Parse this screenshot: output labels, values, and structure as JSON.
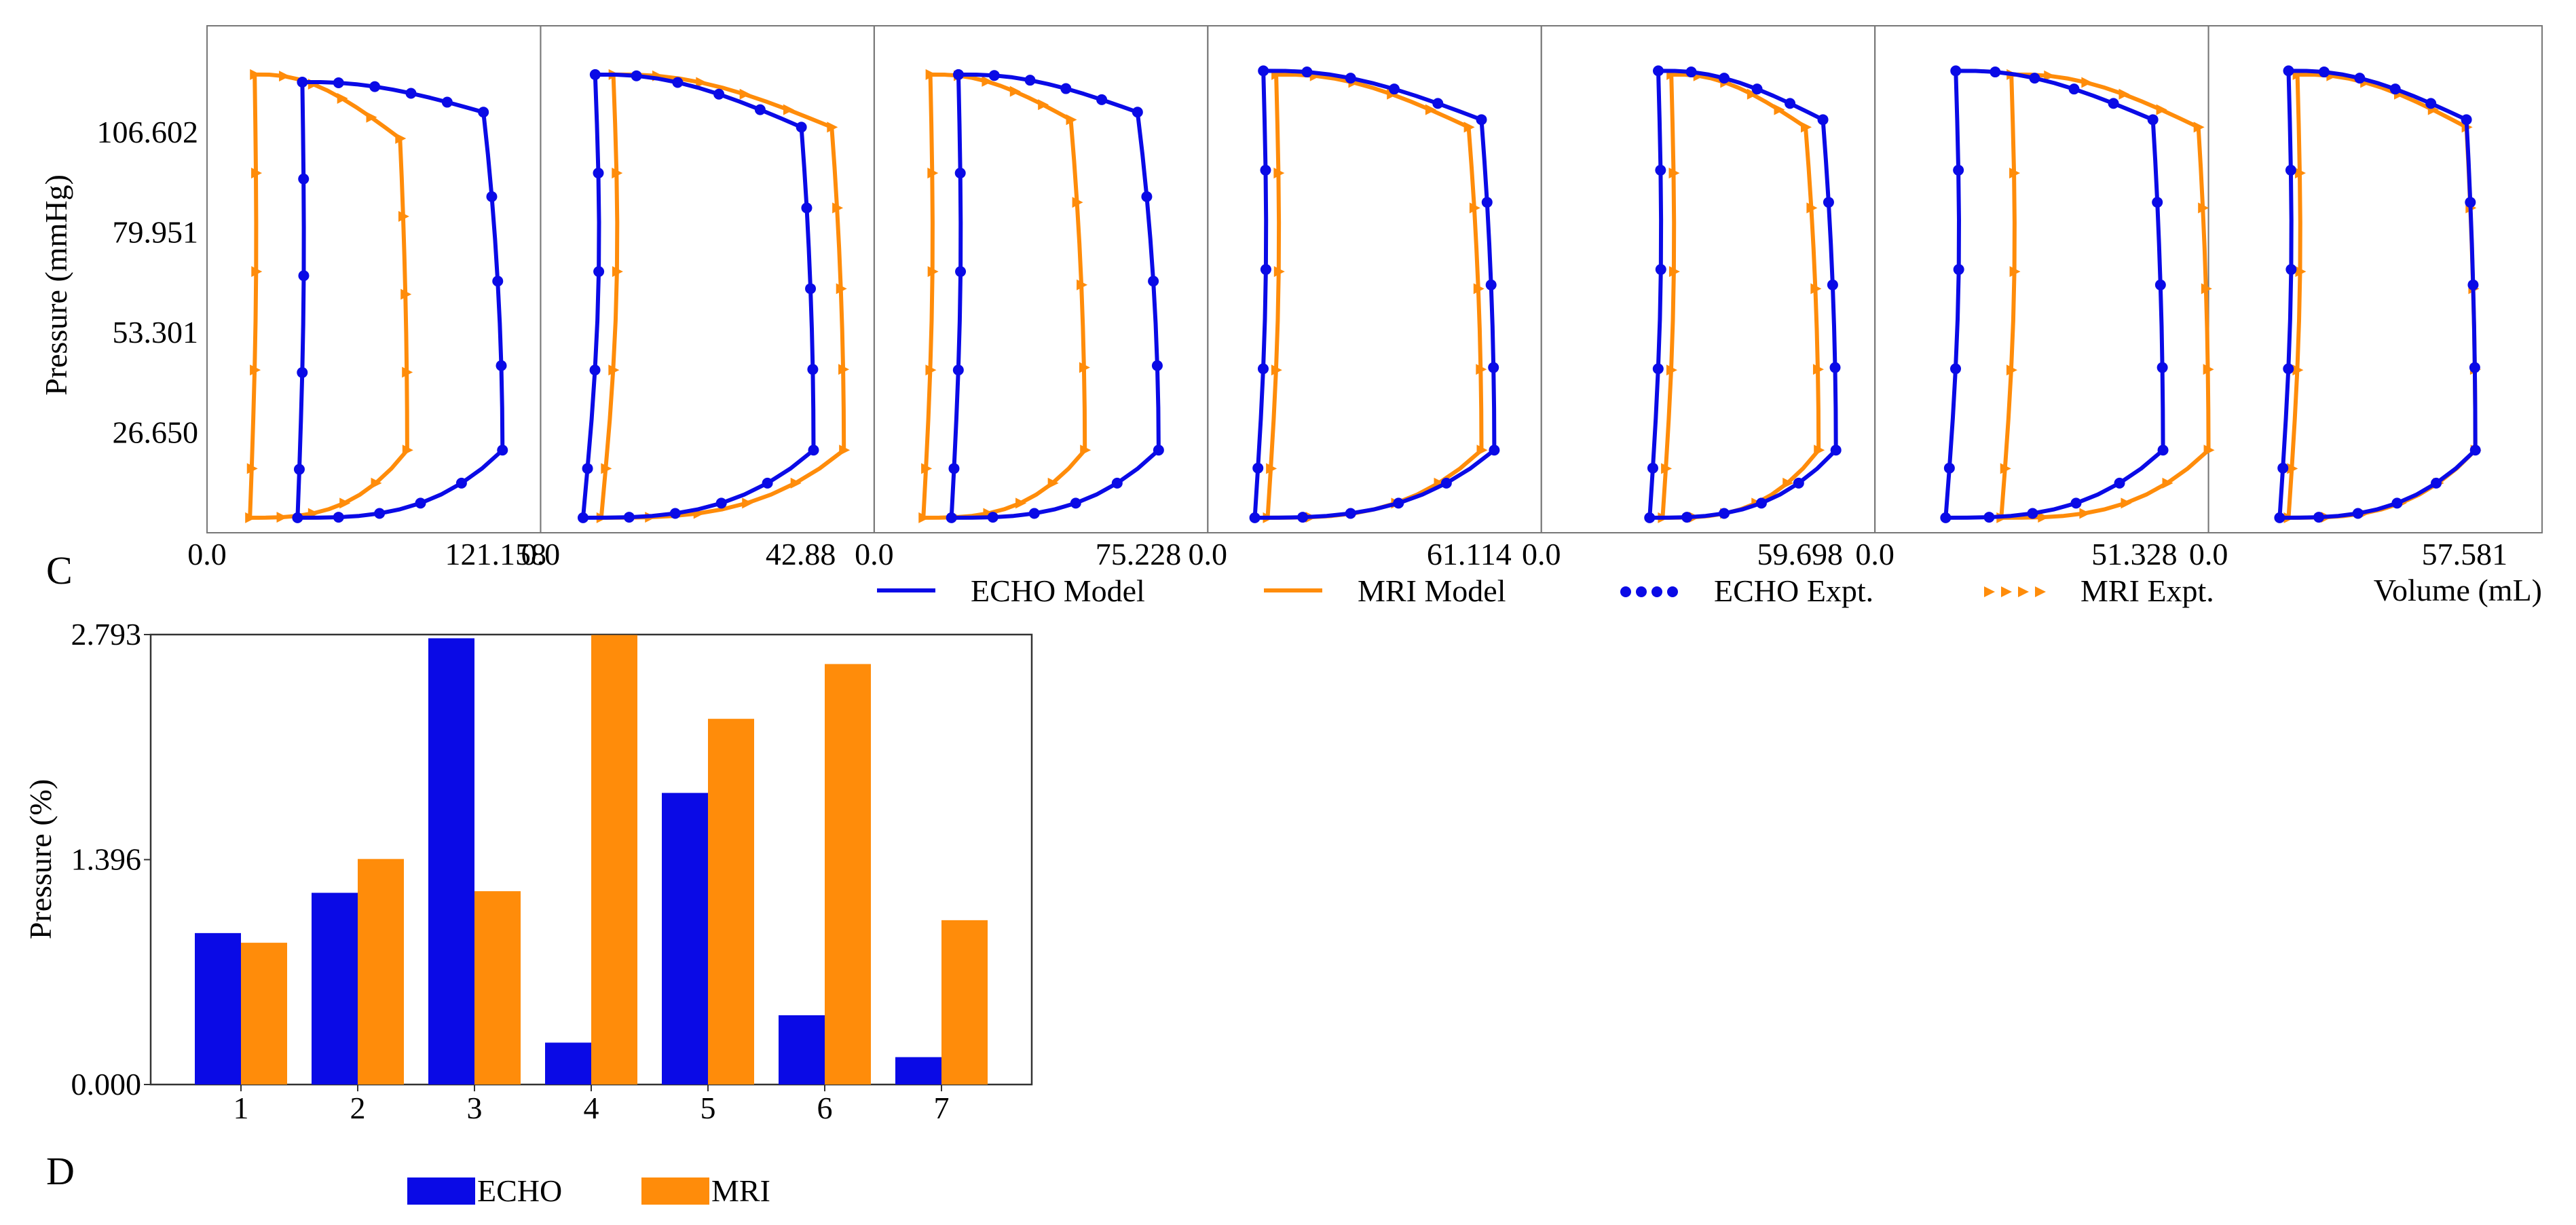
{
  "colors": {
    "echo": "#0a0ae6",
    "mri": "#ff8c0a",
    "frame": "#777777"
  },
  "chart_data": [
    {
      "type": "line",
      "panel_label": "C",
      "ylabel": "Pressure (mmHg)",
      "xlabel": "Volume (mL)",
      "y_ticks": [
        "26.650",
        "53.301",
        "79.951",
        "106.602"
      ],
      "ylim": [
        0,
        135
      ],
      "subplots": [
        {
          "x_ticks": [
            "0.0",
            "121.158"
          ],
          "xlim": [
            0,
            140
          ],
          "echo": {
            "esv": 38,
            "edv": 124,
            "shift": -8,
            "top": 120,
            "ejMid": 112
          },
          "mri": {
            "esv": 18,
            "edv": 84,
            "shift": -3,
            "top": 122,
            "ejMid": 105
          }
        },
        {
          "x_ticks": [
            "0.0",
            "42.88"
          ],
          "xlim": [
            0,
            55
          ],
          "echo": {
            "esv": 7,
            "edv": 45,
            "shift": -2,
            "top": 122,
            "ejMid": 108
          },
          "mri": {
            "esv": 10,
            "edv": 50,
            "shift": -2,
            "top": 122,
            "ejMid": 108
          }
        },
        {
          "x_ticks": [
            "0.0",
            "75.228"
          ],
          "xlim": [
            0,
            95
          ],
          "echo": {
            "esv": 22,
            "edv": 81,
            "shift": -6,
            "top": 122,
            "ejMid": 112
          },
          "mri": {
            "esv": 14,
            "edv": 60,
            "shift": -4,
            "top": 122,
            "ejMid": 110
          }
        },
        {
          "x_ticks": [
            "0.0",
            "61.114"
          ],
          "xlim": [
            0,
            78
          ],
          "echo": {
            "esv": 11,
            "edv": 67,
            "shift": -3,
            "top": 123,
            "ejMid": 110
          },
          "mri": {
            "esv": 14,
            "edv": 64,
            "shift": -3,
            "top": 122,
            "ejMid": 108
          }
        },
        {
          "x_ticks": [
            "0.0",
            "59.698"
          ],
          "xlim": [
            0,
            77
          ],
          "echo": {
            "esv": 25,
            "edv": 68,
            "shift": -3,
            "top": 123,
            "ejMid": 110
          },
          "mri": {
            "esv": 28,
            "edv": 64,
            "shift": -3,
            "top": 122,
            "ejMid": 108
          }
        },
        {
          "x_ticks": [
            "0.0",
            "51.328"
          ],
          "xlim": [
            0,
            66
          ],
          "echo": {
            "esv": 14,
            "edv": 57,
            "shift": -2,
            "top": 123,
            "ejMid": 110
          },
          "mri": {
            "esv": 25,
            "edv": 66,
            "shift": -2,
            "top": 122,
            "ejMid": 108
          }
        },
        {
          "x_ticks": [
            "0.0",
            "57.581"
          ],
          "xlim": [
            0,
            75
          ],
          "echo": {
            "esv": 16,
            "edv": 60,
            "shift": -2,
            "top": 123,
            "ejMid": 110
          },
          "mri": {
            "esv": 18,
            "edv": 60,
            "shift": -2,
            "top": 122,
            "ejMid": 108
          }
        }
      ],
      "legend": [
        "ECHO Model",
        "MRI Model",
        "ECHO Expt.",
        "MRI Expt."
      ]
    },
    {
      "type": "bar",
      "panel_label": "D",
      "ylabel": "Pressure (%)",
      "categories": [
        "1",
        "2",
        "3",
        "4",
        "5",
        "6",
        "7"
      ],
      "y_ticks": [
        "0.000",
        "1.396",
        "2.793"
      ],
      "ylim": [
        0,
        2.793
      ],
      "series": [
        {
          "name": "ECHO",
          "values": [
            0.94,
            1.19,
            2.77,
            0.26,
            1.81,
            0.43,
            0.17
          ]
        },
        {
          "name": "MRI",
          "values": [
            0.88,
            1.4,
            1.2,
            2.79,
            2.27,
            2.61,
            1.02
          ]
        }
      ]
    }
  ]
}
